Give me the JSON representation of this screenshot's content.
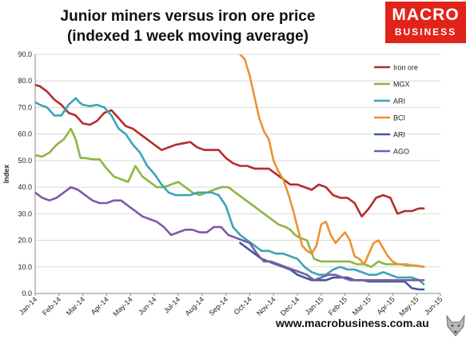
{
  "title_lines": [
    "Junior miners versus iron ore price",
    "(indexed 1 week moving average)"
  ],
  "logo": {
    "line1": "MACRO",
    "line2": "BUSINESS"
  },
  "footer": "www.macrobusiness.com.au",
  "chart_data": {
    "type": "line",
    "title": "Junior miners versus iron ore price (indexed 1 week moving average)",
    "ylabel": "Index",
    "xlabel": "",
    "ylim": [
      0,
      90
    ],
    "yticks": [
      "0.0",
      "10.0",
      "20.0",
      "30.0",
      "40.0",
      "50.0",
      "60.0",
      "70.0",
      "80.0",
      "90.0"
    ],
    "xlim": [
      0,
      17
    ],
    "x_tick_labels": [
      "Jan-14",
      "Feb-14",
      "Mar-14",
      "Apr-14",
      "May-14",
      "Jun-14",
      "Jul-14",
      "Aug-14",
      "Sep-14",
      "Oct-14",
      "Nov-14",
      "Dec-14",
      "Jan-15",
      "Feb-15",
      "Mar-15",
      "Apr-15",
      "May-15",
      "Jun-15"
    ],
    "grid": "horizontal",
    "legend_position": "right",
    "series": [
      {
        "name": "Iron ore",
        "color": "#b22e2a",
        "x": [
          0,
          0.2,
          0.5,
          0.8,
          1.1,
          1.4,
          1.7,
          1.85,
          2.0,
          2.3,
          2.6,
          2.9,
          3.2,
          3.5,
          3.8,
          4.1,
          4.4,
          4.7,
          5.0,
          5.3,
          5.6,
          5.9,
          6.2,
          6.5,
          6.8,
          7.1,
          7.4,
          7.7,
          8.0,
          8.3,
          8.6,
          8.9,
          9.2,
          9.5,
          9.8,
          10.1,
          10.4,
          10.7,
          11.0,
          11.3,
          11.6,
          11.9,
          12.2,
          12.5,
          12.8,
          13.1,
          13.4,
          13.7,
          14.0,
          14.3,
          14.6,
          14.9,
          15.2,
          15.5,
          15.8,
          16.1,
          16.3
        ],
        "y": [
          78.5,
          78,
          76,
          73,
          71,
          68,
          67,
          65.5,
          64,
          63.5,
          65,
          68,
          69,
          66,
          63,
          62,
          60,
          58,
          56,
          54,
          55,
          56,
          56.5,
          57,
          55,
          54,
          54,
          54,
          51,
          49,
          48,
          48,
          47,
          47,
          47,
          45,
          43,
          41,
          41,
          40,
          39,
          41,
          40,
          37,
          36,
          36,
          34,
          29,
          32,
          36,
          37,
          36,
          30,
          31,
          31,
          32,
          32
        ]
      },
      {
        "name": "MGX",
        "color": "#8db642",
        "x": [
          0,
          0.3,
          0.6,
          0.9,
          1.2,
          1.5,
          1.7,
          1.9,
          2.1,
          2.4,
          2.7,
          3.0,
          3.3,
          3.6,
          3.9,
          4.2,
          4.5,
          4.8,
          5.1,
          5.4,
          5.7,
          6.0,
          6.3,
          6.6,
          6.9,
          7.2,
          7.5,
          7.8,
          8.1,
          8.4,
          8.7,
          9.0,
          9.3,
          9.6,
          9.9,
          10.2,
          10.5,
          10.7,
          10.9,
          11.1,
          11.4,
          11.7,
          12.0,
          12.3,
          12.6,
          12.9,
          13.2,
          13.5,
          13.8,
          14.1,
          14.4,
          14.7,
          15.0,
          15.3,
          15.6,
          15.9,
          16.3
        ],
        "y": [
          52,
          51.5,
          53,
          56,
          58,
          62,
          58,
          51,
          51,
          50.5,
          50.5,
          47,
          44,
          43,
          42,
          48,
          44,
          42,
          40,
          40,
          41,
          42,
          40,
          38,
          37,
          38,
          39,
          40,
          40,
          38,
          36,
          34,
          32,
          30,
          28,
          26,
          25,
          24,
          22,
          21,
          20,
          13,
          12,
          12,
          12,
          12,
          12,
          11,
          11,
          10,
          12,
          11,
          11,
          11,
          10.5,
          10.5,
          10
        ]
      },
      {
        "name": "ARI",
        "color": "#3ea3b8",
        "x": [
          0,
          0.2,
          0.5,
          0.8,
          1.1,
          1.4,
          1.7,
          1.85,
          2.0,
          2.3,
          2.6,
          2.9,
          3.2,
          3.5,
          3.8,
          4.1,
          4.4,
          4.7,
          5.0,
          5.3,
          5.6,
          5.9,
          6.2,
          6.5,
          6.8,
          7.1,
          7.4,
          7.7,
          8.0,
          8.3,
          8.6,
          8.9,
          9.2,
          9.5,
          9.8,
          10.1,
          10.4,
          10.7,
          11.0,
          11.3,
          11.6,
          11.9,
          12.2,
          12.5,
          12.8,
          13.1,
          13.4,
          13.7,
          14.0,
          14.3,
          14.6,
          14.9,
          15.2,
          15.5,
          15.8,
          16.1,
          16.3
        ],
        "y": [
          72,
          71,
          70,
          67,
          67,
          71,
          73.5,
          72,
          71,
          70.5,
          71,
          70,
          67,
          62,
          60,
          56,
          53,
          48,
          45,
          41,
          38,
          37,
          37,
          37,
          38,
          38,
          38,
          37,
          33,
          25,
          22,
          20,
          18,
          16,
          16,
          15,
          15,
          14,
          13,
          10,
          8,
          7,
          7,
          9,
          10,
          9,
          9,
          8,
          7,
          7,
          8,
          7,
          6,
          6,
          6,
          5,
          3.5
        ]
      },
      {
        "name": "BCI",
        "color": "#ea9234",
        "x": [
          8.6,
          8.8,
          9.0,
          9.2,
          9.4,
          9.6,
          9.8,
          10.0,
          10.2,
          10.4,
          10.6,
          10.8,
          11.0,
          11.2,
          11.4,
          11.6,
          11.8,
          12.0,
          12.2,
          12.4,
          12.6,
          12.8,
          13.0,
          13.2,
          13.4,
          13.6,
          13.8,
          14.0,
          14.2,
          14.4,
          14.6,
          14.8,
          15.0,
          15.2,
          15.4,
          15.6,
          15.8,
          16.0,
          16.3
        ],
        "y": [
          90,
          88,
          82,
          74,
          66,
          61,
          58,
          50,
          46,
          43,
          38,
          32,
          25,
          18,
          16,
          15,
          18,
          26,
          27,
          22,
          19,
          21,
          23,
          20,
          14,
          13,
          11,
          15,
          19,
          20,
          17,
          14,
          12,
          11,
          11,
          11,
          10.5,
          10.5,
          10
        ]
      },
      {
        "name": "ARI",
        "color": "#3d5a99",
        "x": [
          8.6,
          8.9,
          9.2,
          9.5,
          9.8,
          10.1,
          10.4,
          10.7,
          11.0,
          11.3,
          11.6,
          11.9,
          12.2,
          12.5,
          12.8,
          13.1,
          13.4,
          13.7,
          14.0,
          14.3,
          14.6,
          14.9,
          15.2,
          15.5,
          15.8,
          16.1,
          16.3
        ],
        "y": [
          19,
          17,
          15,
          13,
          12,
          11,
          10,
          9,
          7,
          6,
          5,
          5,
          5,
          6,
          6,
          6,
          5,
          5,
          4.5,
          4.5,
          4.5,
          4.5,
          4.5,
          4.5,
          2,
          1.5,
          1.5
        ]
      },
      {
        "name": "AGO",
        "color": "#7d5ba6",
        "x": [
          0,
          0.3,
          0.6,
          0.9,
          1.2,
          1.5,
          1.8,
          2.1,
          2.4,
          2.7,
          3.0,
          3.3,
          3.6,
          3.9,
          4.2,
          4.5,
          4.8,
          5.1,
          5.4,
          5.7,
          6.0,
          6.3,
          6.6,
          6.9,
          7.2,
          7.5,
          7.8,
          8.1,
          8.4,
          8.7,
          9.0,
          9.3,
          9.6,
          9.9,
          10.2,
          10.5,
          10.8,
          11.1,
          11.4,
          11.7,
          12.0,
          12.3,
          12.6,
          12.9,
          13.2,
          13.5,
          13.8,
          14.1,
          14.4,
          14.7,
          15.0,
          15.3,
          15.6,
          15.9,
          16.3
        ],
        "y": [
          38,
          36,
          35,
          36,
          38,
          40,
          39,
          37,
          35,
          34,
          34,
          35,
          35,
          33,
          31,
          29,
          28,
          27,
          25,
          22,
          23,
          24,
          24,
          23,
          23,
          25,
          25,
          22,
          21,
          20,
          19,
          15,
          12,
          12,
          11,
          10,
          9,
          8,
          7,
          5,
          6,
          7,
          7,
          6,
          5,
          5,
          5,
          5,
          5,
          5,
          5,
          5,
          5,
          5,
          5
        ]
      }
    ]
  }
}
